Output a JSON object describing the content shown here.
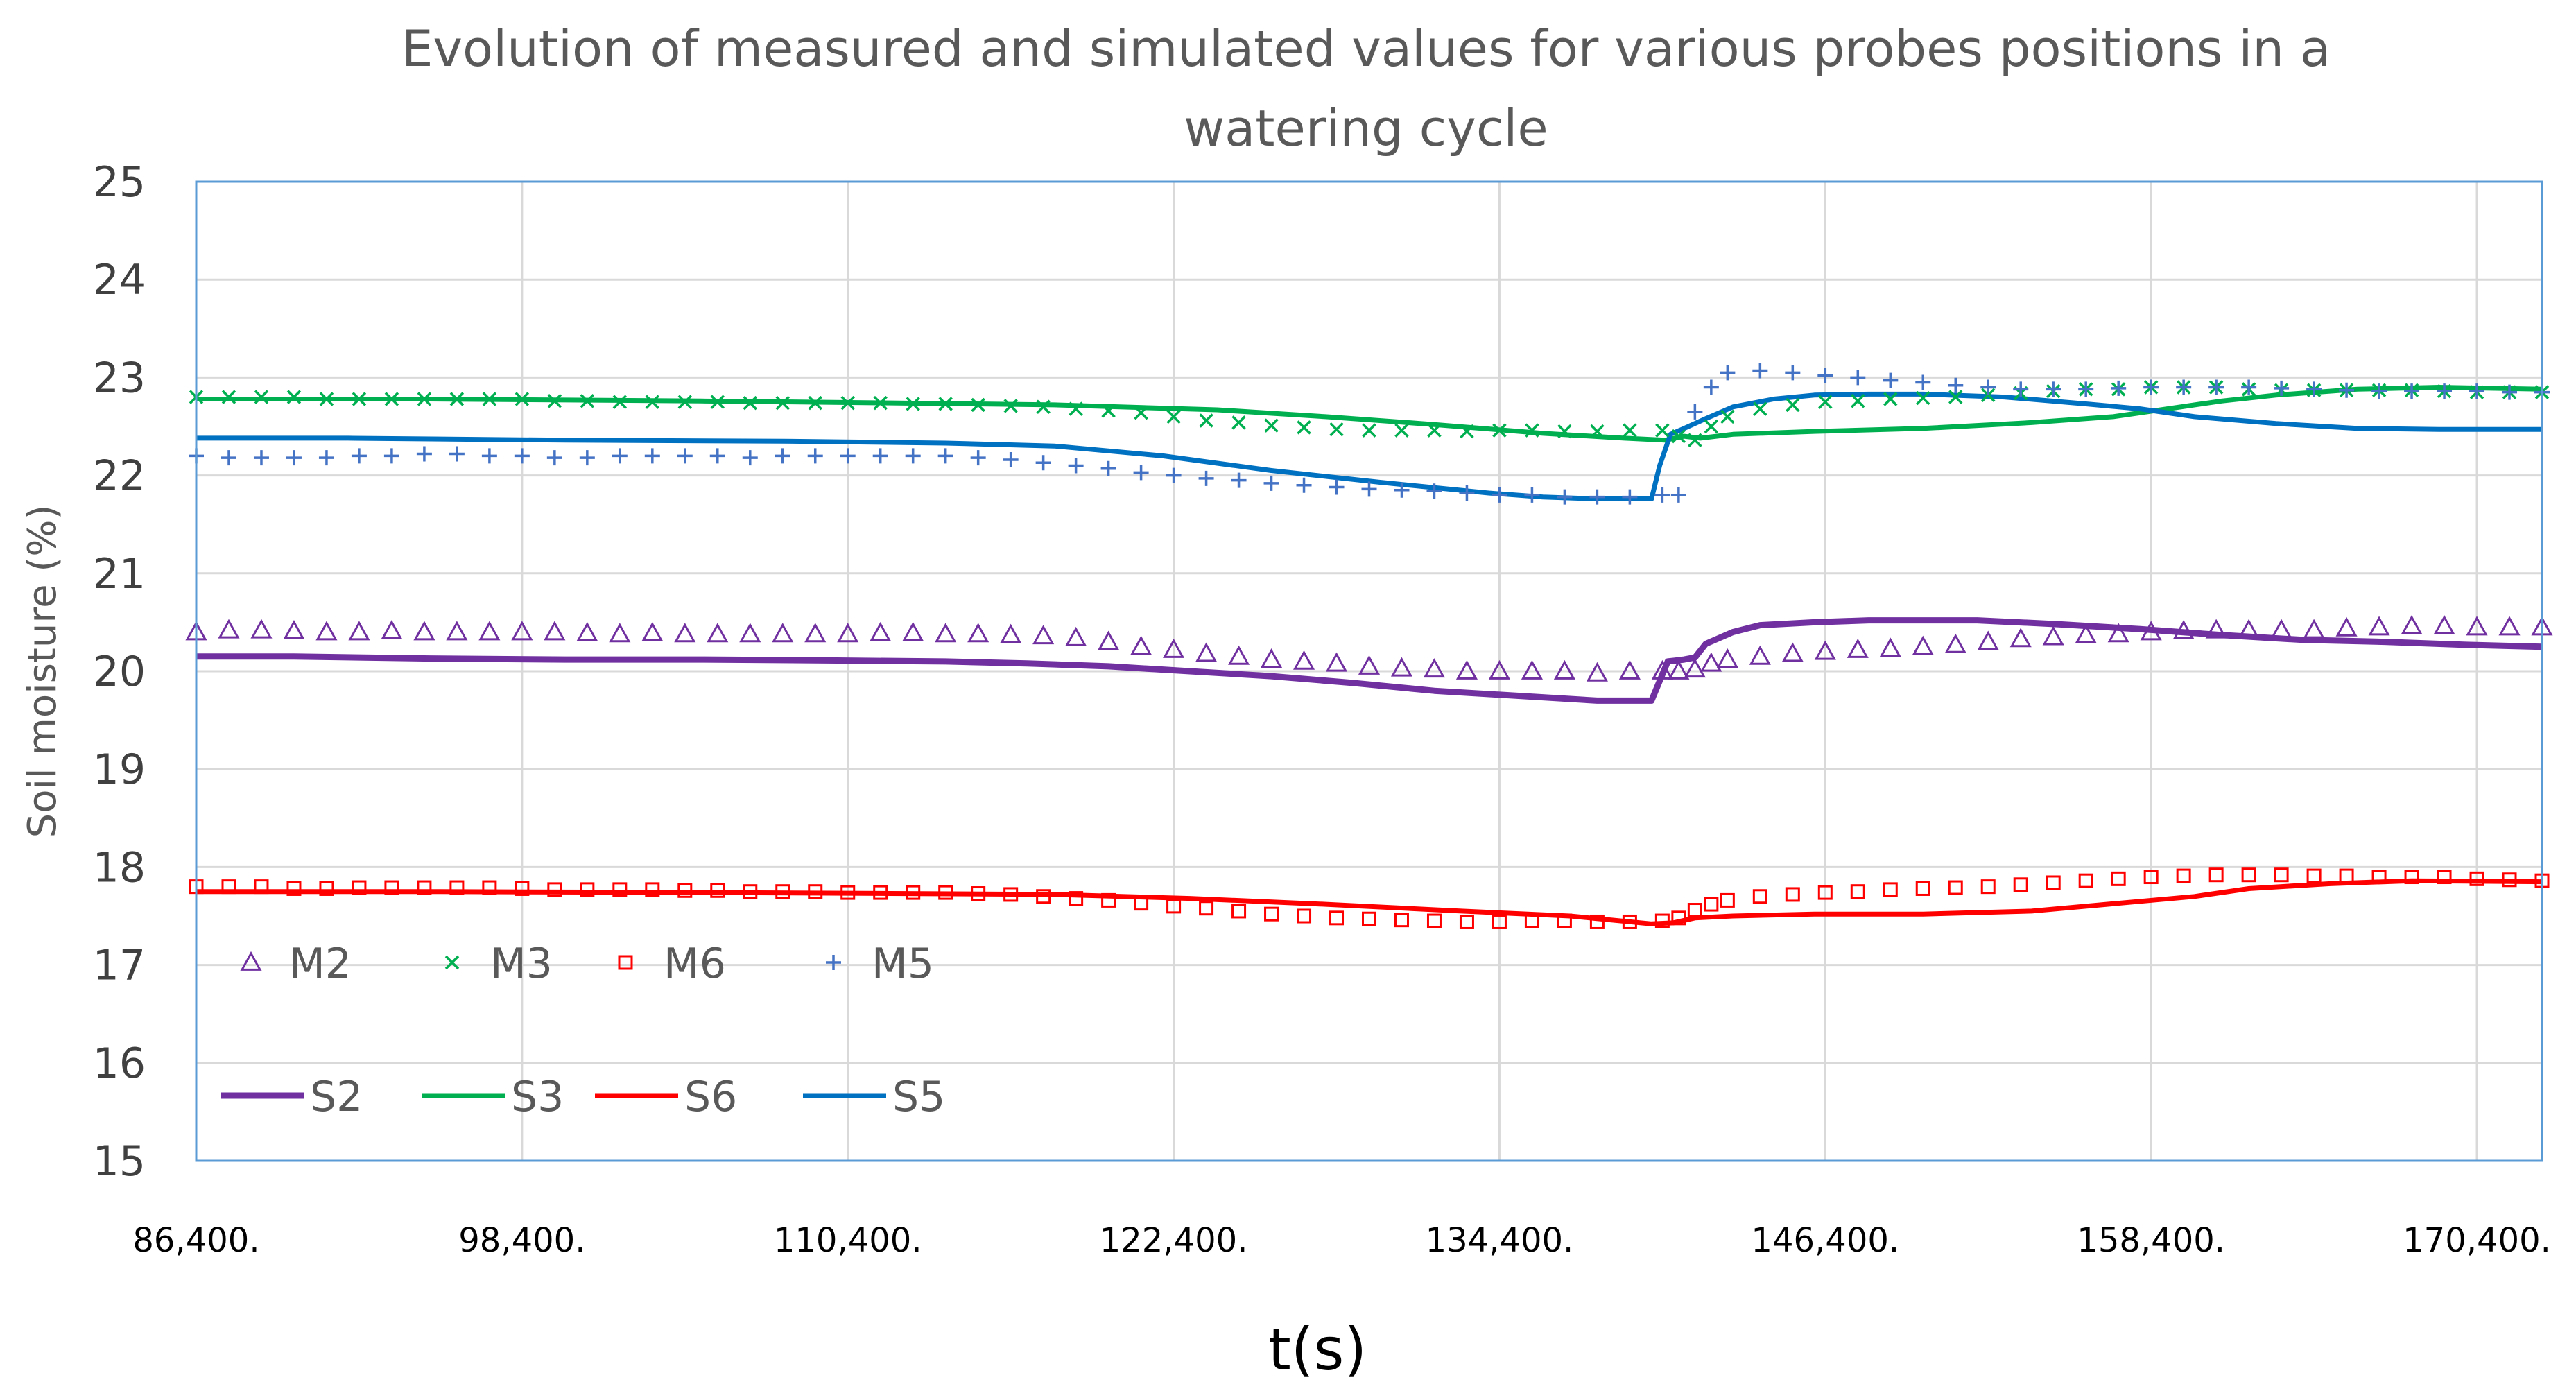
{
  "chart_data": {
    "type": "line",
    "title_lines": [
      "Evolution of measured and simulated values for various probes positions in a",
      "watering cycle"
    ],
    "xlabel": "t(s)",
    "ylabel": "Soil moisture (%)",
    "xlim": [
      86400,
      172800
    ],
    "ylim": [
      15,
      25
    ],
    "xticks": [
      86400,
      98400,
      110400,
      122400,
      134400,
      146400,
      158400,
      170400
    ],
    "xtick_labels": [
      "86,400.",
      "98,400.",
      "110,400.",
      "122,400.",
      "134,400.",
      "146,400.",
      "158,400.",
      "170,400."
    ],
    "yticks": [
      15,
      16,
      17,
      18,
      19,
      20,
      21,
      22,
      23,
      24,
      25
    ],
    "ytick_labels": [
      "15",
      "16",
      "17",
      "18",
      "19",
      "20",
      "21",
      "22",
      "23",
      "24",
      "25"
    ],
    "grid": true,
    "legend_position": "bottom-left",
    "colors": {
      "M2": "#7030A0",
      "M3": "#00B050",
      "M6": "#FF0000",
      "M5": "#4472C4",
      "S2": "#7030A0",
      "S3": "#00B050",
      "S6": "#FF0000",
      "S5": "#0070C0",
      "grid": "#D9D9D9",
      "frame": "#5B9BD5"
    },
    "series": [
      {
        "name": "M2",
        "kind": "marker",
        "marker": "triangle",
        "x": [
          86400,
          87600,
          88800,
          90000,
          91200,
          92400,
          93600,
          94800,
          96000,
          97200,
          98400,
          99600,
          100800,
          102000,
          103200,
          104400,
          105600,
          106800,
          108000,
          109200,
          110400,
          111600,
          112800,
          114000,
          115200,
          116400,
          117600,
          118800,
          120000,
          121200,
          122400,
          123600,
          124800,
          126000,
          127200,
          128400,
          129600,
          130800,
          132000,
          133200,
          134400,
          135600,
          136800,
          138000,
          139200,
          140400,
          141000,
          141600,
          142200,
          142800,
          144000,
          145200,
          146400,
          147600,
          148800,
          150000,
          151200,
          152400,
          153600,
          154800,
          156000,
          157200,
          158400,
          159600,
          160800,
          162000,
          163200,
          164400,
          165600,
          166800,
          168000,
          169200,
          170400,
          171600,
          172800
        ],
        "y": [
          20.4,
          20.42,
          20.42,
          20.41,
          20.4,
          20.4,
          20.41,
          20.4,
          20.4,
          20.4,
          20.4,
          20.4,
          20.39,
          20.38,
          20.39,
          20.38,
          20.38,
          20.38,
          20.38,
          20.38,
          20.38,
          20.39,
          20.39,
          20.38,
          20.38,
          20.37,
          20.36,
          20.34,
          20.3,
          20.25,
          20.22,
          20.18,
          20.15,
          20.12,
          20.1,
          20.08,
          20.05,
          20.03,
          20.02,
          20.0,
          20.0,
          20.0,
          20.0,
          19.98,
          20.0,
          20.0,
          20.0,
          20.02,
          20.08,
          20.12,
          20.15,
          20.18,
          20.2,
          20.22,
          20.23,
          20.25,
          20.27,
          20.3,
          20.33,
          20.35,
          20.37,
          20.38,
          20.4,
          20.41,
          20.42,
          20.42,
          20.42,
          20.42,
          20.44,
          20.45,
          20.46,
          20.46,
          20.45,
          20.45,
          20.45
        ]
      },
      {
        "name": "M3",
        "kind": "marker",
        "marker": "x",
        "x": [
          86400,
          87600,
          88800,
          90000,
          91200,
          92400,
          93600,
          94800,
          96000,
          97200,
          98400,
          99600,
          100800,
          102000,
          103200,
          104400,
          105600,
          106800,
          108000,
          109200,
          110400,
          111600,
          112800,
          114000,
          115200,
          116400,
          117600,
          118800,
          120000,
          121200,
          122400,
          123600,
          124800,
          126000,
          127200,
          128400,
          129600,
          130800,
          132000,
          133200,
          134400,
          135600,
          136800,
          138000,
          139200,
          140400,
          141000,
          141600,
          142200,
          142800,
          144000,
          145200,
          146400,
          147600,
          148800,
          150000,
          151200,
          152400,
          153600,
          154800,
          156000,
          157200,
          158400,
          159600,
          160800,
          162000,
          163200,
          164400,
          165600,
          166800,
          168000,
          169200,
          170400,
          171600,
          172800
        ],
        "y": [
          22.8,
          22.8,
          22.8,
          22.8,
          22.78,
          22.78,
          22.78,
          22.78,
          22.78,
          22.78,
          22.78,
          22.76,
          22.76,
          22.75,
          22.75,
          22.75,
          22.75,
          22.74,
          22.74,
          22.74,
          22.74,
          22.74,
          22.73,
          22.73,
          22.72,
          22.71,
          22.7,
          22.68,
          22.66,
          22.64,
          22.6,
          22.56,
          22.54,
          22.51,
          22.49,
          22.47,
          22.46,
          22.46,
          22.46,
          22.45,
          22.46,
          22.46,
          22.45,
          22.45,
          22.46,
          22.46,
          22.4,
          22.36,
          22.5,
          22.6,
          22.68,
          22.72,
          22.75,
          22.76,
          22.78,
          22.79,
          22.8,
          22.82,
          22.84,
          22.86,
          22.88,
          22.88,
          22.9,
          22.9,
          22.9,
          22.88,
          22.87,
          22.87,
          22.87,
          22.87,
          22.87,
          22.86,
          22.85,
          22.85,
          22.85
        ]
      },
      {
        "name": "M6",
        "kind": "marker",
        "marker": "square",
        "x": [
          86400,
          87600,
          88800,
          90000,
          91200,
          92400,
          93600,
          94800,
          96000,
          97200,
          98400,
          99600,
          100800,
          102000,
          103200,
          104400,
          105600,
          106800,
          108000,
          109200,
          110400,
          111600,
          112800,
          114000,
          115200,
          116400,
          117600,
          118800,
          120000,
          121200,
          122400,
          123600,
          124800,
          126000,
          127200,
          128400,
          129600,
          130800,
          132000,
          133200,
          134400,
          135600,
          136800,
          138000,
          139200,
          140400,
          141000,
          141600,
          142200,
          142800,
          144000,
          145200,
          146400,
          147600,
          148800,
          150000,
          151200,
          152400,
          153600,
          154800,
          156000,
          157200,
          158400,
          159600,
          160800,
          162000,
          163200,
          164400,
          165600,
          166800,
          168000,
          169200,
          170400,
          171600,
          172800
        ],
        "y": [
          17.8,
          17.8,
          17.8,
          17.78,
          17.78,
          17.79,
          17.79,
          17.79,
          17.79,
          17.79,
          17.78,
          17.77,
          17.77,
          17.77,
          17.77,
          17.76,
          17.76,
          17.75,
          17.75,
          17.75,
          17.74,
          17.74,
          17.74,
          17.74,
          17.73,
          17.72,
          17.7,
          17.68,
          17.66,
          17.63,
          17.6,
          17.58,
          17.55,
          17.52,
          17.5,
          17.48,
          17.47,
          17.46,
          17.45,
          17.44,
          17.44,
          17.45,
          17.45,
          17.44,
          17.44,
          17.45,
          17.48,
          17.56,
          17.62,
          17.66,
          17.7,
          17.72,
          17.74,
          17.75,
          17.77,
          17.78,
          17.79,
          17.8,
          17.82,
          17.84,
          17.86,
          17.88,
          17.9,
          17.91,
          17.92,
          17.92,
          17.92,
          17.91,
          17.91,
          17.9,
          17.9,
          17.9,
          17.88,
          17.87,
          17.86
        ]
      },
      {
        "name": "M5",
        "kind": "marker",
        "marker": "plus",
        "x": [
          86400,
          87600,
          88800,
          90000,
          91200,
          92400,
          93600,
          94800,
          96000,
          97200,
          98400,
          99600,
          100800,
          102000,
          103200,
          104400,
          105600,
          106800,
          108000,
          109200,
          110400,
          111600,
          112800,
          114000,
          115200,
          116400,
          117600,
          118800,
          120000,
          121200,
          122400,
          123600,
          124800,
          126000,
          127200,
          128400,
          129600,
          130800,
          132000,
          133200,
          134400,
          135600,
          136800,
          138000,
          139200,
          140400,
          141000,
          141600,
          142200,
          142800,
          144000,
          145200,
          146400,
          147600,
          148800,
          150000,
          151200,
          152400,
          153600,
          154800,
          156000,
          157200,
          158400,
          159600,
          160800,
          162000,
          163200,
          164400,
          165600,
          166800,
          168000,
          169200,
          170400,
          171600,
          172800
        ],
        "y": [
          22.2,
          22.18,
          22.18,
          22.18,
          22.18,
          22.2,
          22.2,
          22.22,
          22.22,
          22.2,
          22.2,
          22.18,
          22.18,
          22.2,
          22.2,
          22.2,
          22.2,
          22.18,
          22.2,
          22.2,
          22.2,
          22.2,
          22.2,
          22.2,
          22.18,
          22.16,
          22.13,
          22.1,
          22.07,
          22.03,
          22.0,
          21.97,
          21.95,
          21.92,
          21.9,
          21.88,
          21.86,
          21.85,
          21.84,
          21.82,
          21.8,
          21.8,
          21.78,
          21.78,
          21.78,
          21.8,
          21.8,
          22.65,
          22.9,
          23.05,
          23.07,
          23.05,
          23.02,
          23.0,
          22.97,
          22.95,
          22.92,
          22.9,
          22.88,
          22.88,
          22.88,
          22.89,
          22.9,
          22.9,
          22.9,
          22.9,
          22.89,
          22.88,
          22.87,
          22.86,
          22.86,
          22.86,
          22.86,
          22.85,
          22.85
        ]
      },
      {
        "name": "S2",
        "kind": "line",
        "x": [
          86400,
          90000,
          95000,
          100000,
          105000,
          110000,
          114000,
          117000,
          120000,
          123000,
          126000,
          129000,
          132000,
          135000,
          138000,
          140000,
          140600,
          141200,
          141600,
          142000,
          143000,
          144000,
          146000,
          148000,
          150000,
          152000,
          155000,
          158000,
          161000,
          164000,
          167000,
          170000,
          172800
        ],
        "y": [
          20.15,
          20.15,
          20.13,
          20.12,
          20.12,
          20.11,
          20.1,
          20.08,
          20.05,
          20.0,
          19.95,
          19.88,
          19.8,
          19.75,
          19.7,
          19.7,
          20.1,
          20.12,
          20.14,
          20.28,
          20.4,
          20.47,
          20.5,
          20.52,
          20.52,
          20.52,
          20.48,
          20.43,
          20.37,
          20.32,
          20.3,
          20.27,
          20.25
        ]
      },
      {
        "name": "S3",
        "kind": "line",
        "x": [
          86400,
          95000,
          105000,
          112000,
          118000,
          124000,
          128000,
          132000,
          136000,
          139000,
          140500,
          141200,
          141800,
          143000,
          146000,
          150000,
          154000,
          157000,
          159000,
          161000,
          163000,
          166000,
          169000,
          172800
        ],
        "y": [
          22.78,
          22.78,
          22.76,
          22.74,
          22.72,
          22.67,
          22.6,
          22.52,
          22.43,
          22.38,
          22.36,
          22.4,
          22.38,
          22.42,
          22.45,
          22.48,
          22.54,
          22.6,
          22.68,
          22.76,
          22.82,
          22.88,
          22.9,
          22.88
        ]
      },
      {
        "name": "S6",
        "kind": "line",
        "x": [
          86400,
          95000,
          105000,
          112000,
          118000,
          123000,
          128000,
          133000,
          137000,
          140000,
          140800,
          141600,
          143000,
          146000,
          150000,
          154000,
          158000,
          160000,
          162000,
          165000,
          168000,
          172800
        ],
        "y": [
          17.75,
          17.75,
          17.74,
          17.73,
          17.72,
          17.68,
          17.62,
          17.55,
          17.5,
          17.42,
          17.43,
          17.48,
          17.5,
          17.52,
          17.52,
          17.55,
          17.65,
          17.7,
          17.78,
          17.83,
          17.86,
          17.85
        ]
      },
      {
        "name": "S5",
        "kind": "line",
        "x": [
          86400,
          92000,
          100000,
          108000,
          114000,
          118000,
          122000,
          126000,
          130000,
          134000,
          136000,
          138000,
          140000,
          140300,
          140700,
          141200,
          142000,
          143000,
          144500,
          146000,
          148000,
          150000,
          153000,
          156000,
          158000,
          160000,
          163000,
          166000,
          169000,
          172800
        ],
        "y": [
          22.38,
          22.38,
          22.36,
          22.35,
          22.33,
          22.3,
          22.2,
          22.05,
          21.93,
          21.82,
          21.78,
          21.76,
          21.76,
          22.1,
          22.42,
          22.48,
          22.58,
          22.7,
          22.78,
          22.82,
          22.83,
          22.83,
          22.8,
          22.73,
          22.68,
          22.6,
          22.53,
          22.48,
          22.47,
          22.47
        ]
      }
    ],
    "legend_rows": [
      [
        "M2",
        "M3",
        "M6",
        "M5"
      ],
      [
        "S2",
        "S3",
        "S6",
        "S5"
      ]
    ]
  }
}
